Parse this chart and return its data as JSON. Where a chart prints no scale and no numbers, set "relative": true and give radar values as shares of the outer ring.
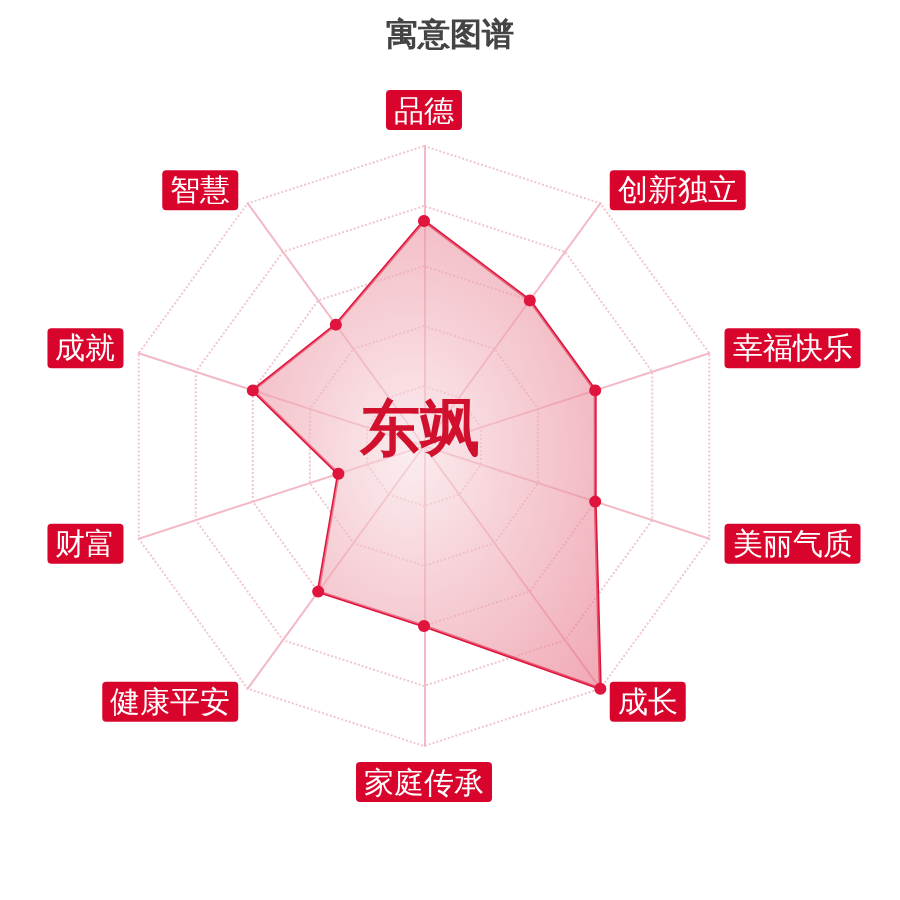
{
  "chart_data": {
    "type": "radar",
    "title": "寓意图谱",
    "categories": [
      "品德",
      "创新独立",
      "幸福快乐",
      "美丽气质",
      "成长",
      "家庭传承",
      "健康平安",
      "财富",
      "成就",
      "智慧"
    ],
    "relative": true,
    "series": [
      {
        "color": "#e0143c",
        "values": [
          0.75,
          0.6,
          0.6,
          0.6,
          1,
          0.6,
          0.6,
          0.3,
          0.6,
          0.5
        ]
      }
    ],
    "annotations": [
      "东飒"
    ],
    "marker": "circle",
    "grid": true
  }
}
